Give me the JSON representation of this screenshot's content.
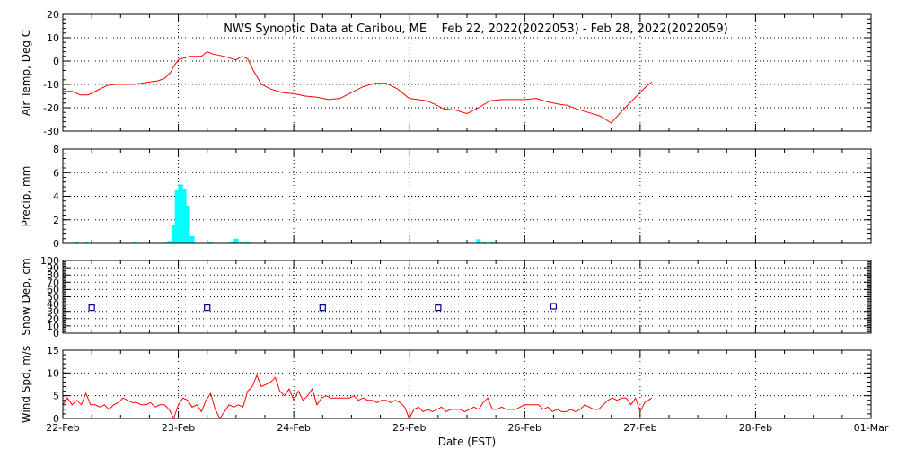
{
  "title": "NWS Synoptic Data at Caribou, ME    Feb 22, 2022(2022053) - Feb 28, 2022(2022059)",
  "xlabel": "Date (EST)",
  "xticks": [
    "22-Feb",
    "23-Feb",
    "24-Feb",
    "25-Feb",
    "26-Feb",
    "27-Feb",
    "28-Feb",
    "01-Mar"
  ],
  "colors": {
    "line": "#ff0000",
    "bar": "#00ffff",
    "marker": "#000080"
  },
  "chart_data": [
    {
      "type": "line",
      "ylabel": "Air Temp, Deg C",
      "xlim": [
        0,
        7
      ],
      "ylim": [
        -30,
        20
      ],
      "yticks": [
        -30,
        -20,
        -10,
        0,
        10,
        20
      ],
      "grid": true,
      "series": [
        {
          "x": [
            0,
            0.08,
            0.15,
            0.22,
            0.3,
            0.38,
            0.45,
            0.52,
            0.6,
            0.68,
            0.75,
            0.82,
            0.88,
            0.93,
            0.97,
            1.0,
            1.03,
            1.1,
            1.2,
            1.25,
            1.3,
            1.4,
            1.5,
            1.55,
            1.6,
            1.65,
            1.72,
            1.8,
            1.9,
            2.0,
            2.1,
            2.2,
            2.3,
            2.4,
            2.5,
            2.6,
            2.7,
            2.8,
            2.9,
            3.0,
            3.08,
            3.15,
            3.22,
            3.3,
            3.4,
            3.5,
            3.6,
            3.7,
            3.8,
            3.9,
            4.0,
            4.1,
            4.2,
            4.3,
            4.37,
            4.45,
            4.55,
            4.65,
            4.75,
            4.85,
            4.95,
            5.0,
            5.05,
            5.1
          ],
          "y": [
            -13,
            -13,
            -14.5,
            -14.5,
            -12.5,
            -10.5,
            -10,
            -10,
            -10,
            -9.5,
            -9,
            -8.5,
            -7.5,
            -5,
            -1.5,
            0.5,
            1,
            2,
            2,
            4,
            3,
            2,
            0.5,
            2,
            1,
            -4,
            -10,
            -12,
            -13.5,
            -14,
            -15,
            -15.5,
            -16.5,
            -16,
            -13.5,
            -11,
            -9.5,
            -9.5,
            -12,
            -16,
            -16.5,
            -17,
            -18.5,
            -20.5,
            -21,
            -22.5,
            -20,
            -17,
            -16.5,
            -16.5,
            -16.5,
            -16,
            -17.5,
            -18.5,
            -19,
            -20.5,
            -22,
            -23.5,
            -26.5,
            -21,
            -16,
            -13.5,
            -11,
            -9
          ]
        }
      ]
    },
    {
      "type": "bar",
      "ylabel": "Precip, mm",
      "xlim": [
        0,
        7
      ],
      "ylim": [
        0,
        8
      ],
      "yticks": [
        0,
        2,
        4,
        6,
        8
      ],
      "grid": true,
      "bar_width": 0.04,
      "x": [
        0.12,
        0.2,
        0.62,
        0.9,
        0.93,
        0.96,
        0.99,
        1.02,
        1.05,
        1.08,
        1.12,
        1.28,
        1.45,
        1.5,
        1.55,
        1.6,
        3.6,
        3.65,
        3.72
      ],
      "values": [
        0.1,
        0.1,
        0.1,
        0.15,
        0.2,
        1.6,
        4.5,
        5.0,
        4.6,
        3.2,
        0.6,
        0.1,
        0.15,
        0.4,
        0.15,
        0.1,
        0.35,
        0.1,
        0.1
      ]
    },
    {
      "type": "scatter",
      "ylabel": "Snow Dep, cm",
      "xlim": [
        0,
        7
      ],
      "ylim": [
        0,
        100
      ],
      "yticks": [
        0,
        10,
        20,
        30,
        40,
        50,
        60,
        70,
        80,
        90,
        100
      ],
      "grid": true,
      "x": [
        0.25,
        1.25,
        2.25,
        3.25,
        4.25
      ],
      "values": [
        35,
        35,
        35,
        35,
        37
      ]
    },
    {
      "type": "line",
      "ylabel": "Wind Spd, m/s",
      "xlim": [
        0,
        7
      ],
      "ylim": [
        0,
        15
      ],
      "yticks": [
        0,
        5,
        10,
        15
      ],
      "grid": true,
      "series": [
        {
          "x": [
            0,
            0.04,
            0.08,
            0.12,
            0.16,
            0.2,
            0.24,
            0.28,
            0.32,
            0.36,
            0.4,
            0.44,
            0.48,
            0.52,
            0.56,
            0.6,
            0.64,
            0.68,
            0.72,
            0.76,
            0.8,
            0.84,
            0.88,
            0.92,
            0.96,
            1.0,
            1.04,
            1.08,
            1.12,
            1.16,
            1.2,
            1.24,
            1.28,
            1.32,
            1.36,
            1.4,
            1.44,
            1.48,
            1.52,
            1.56,
            1.6,
            1.64,
            1.68,
            1.72,
            1.76,
            1.8,
            1.84,
            1.88,
            1.92,
            1.96,
            2.0,
            2.04,
            2.08,
            2.12,
            2.16,
            2.2,
            2.24,
            2.28,
            2.32,
            2.36,
            2.4,
            2.44,
            2.48,
            2.52,
            2.56,
            2.6,
            2.64,
            2.68,
            2.72,
            2.76,
            2.8,
            2.84,
            2.88,
            2.92,
            2.96,
            3.0,
            3.04,
            3.08,
            3.12,
            3.16,
            3.2,
            3.24,
            3.28,
            3.32,
            3.36,
            3.4,
            3.44,
            3.48,
            3.52,
            3.56,
            3.6,
            3.64,
            3.68,
            3.72,
            3.76,
            3.8,
            3.84,
            3.88,
            3.92,
            3.96,
            4.0,
            4.04,
            4.08,
            4.12,
            4.16,
            4.2,
            4.24,
            4.28,
            4.32,
            4.36,
            4.4,
            4.44,
            4.48,
            4.52,
            4.56,
            4.6,
            4.64,
            4.68,
            4.72,
            4.76,
            4.8,
            4.84,
            4.88,
            4.92,
            4.96,
            5.0,
            5.04,
            5.1
          ],
          "y": [
            3,
            4.5,
            3,
            4,
            3,
            5.5,
            3,
            3,
            2.5,
            3,
            2,
            3,
            3.5,
            4.5,
            4,
            3.5,
            3.5,
            3,
            3,
            3.5,
            2.5,
            3,
            3,
            2,
            0,
            3,
            4.5,
            4,
            2.5,
            3,
            1.5,
            4,
            5.5,
            2,
            0,
            1.5,
            3,
            2.5,
            3,
            2.5,
            6,
            7,
            9.5,
            7,
            7.5,
            8,
            9,
            6,
            5,
            6.5,
            4,
            6,
            4,
            5,
            6.5,
            3,
            4.5,
            5,
            4.5,
            4.5,
            4.5,
            4.5,
            4.5,
            5,
            4,
            4.5,
            4,
            4,
            3.5,
            4,
            4,
            3.5,
            4,
            3.5,
            2.5,
            0,
            2,
            2.5,
            1.5,
            2,
            1.5,
            2,
            2.5,
            1.5,
            2,
            2,
            2,
            1.5,
            2,
            2.5,
            2,
            3.5,
            4.5,
            2,
            2,
            2.5,
            2,
            2,
            2,
            2.5,
            3,
            3,
            3,
            3,
            2,
            2.5,
            1.5,
            2,
            1.5,
            1.5,
            2,
            1.5,
            2,
            3,
            2.5,
            2,
            2,
            3,
            4,
            4.5,
            4,
            4.5,
            4.5,
            3,
            4.5,
            1.5,
            3.5,
            4.5
          ]
        }
      ]
    }
  ]
}
